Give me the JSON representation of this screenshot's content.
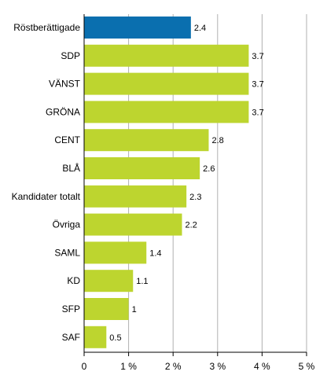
{
  "chart_data": {
    "type": "bar",
    "orientation": "horizontal",
    "title": "",
    "xlabel": "",
    "ylabel": "",
    "categories": [
      "Röstberättigade",
      "SDP",
      "VÄNST",
      "GRÖNA",
      "CENT",
      "BLÅ",
      "Kandidater totalt",
      "Övriga",
      "SAML",
      "KD",
      "SFP",
      "SAF"
    ],
    "values": [
      2.4,
      3.7,
      3.7,
      3.7,
      2.8,
      2.6,
      2.3,
      2.2,
      1.4,
      1.1,
      1.0,
      0.5
    ],
    "value_labels": [
      "2.4",
      "3.7",
      "3.7",
      "3.7",
      "2.8",
      "2.6",
      "2.3",
      "2.2",
      "1.4",
      "1.1",
      "1",
      "0.5"
    ],
    "xlim": [
      0,
      5
    ],
    "x_ticks": [
      0,
      1,
      2,
      3,
      4,
      5
    ],
    "x_tick_labels": [
      "0",
      "1 %",
      "2 %",
      "3 %",
      "4 %",
      "5 %"
    ],
    "grid": true,
    "legend": "none",
    "colors": {
      "highlight": "#0a6faf",
      "bar": "#bdd52f",
      "grid": "#b0b0b0",
      "axis": "#000000"
    },
    "highlight_index": 0
  }
}
